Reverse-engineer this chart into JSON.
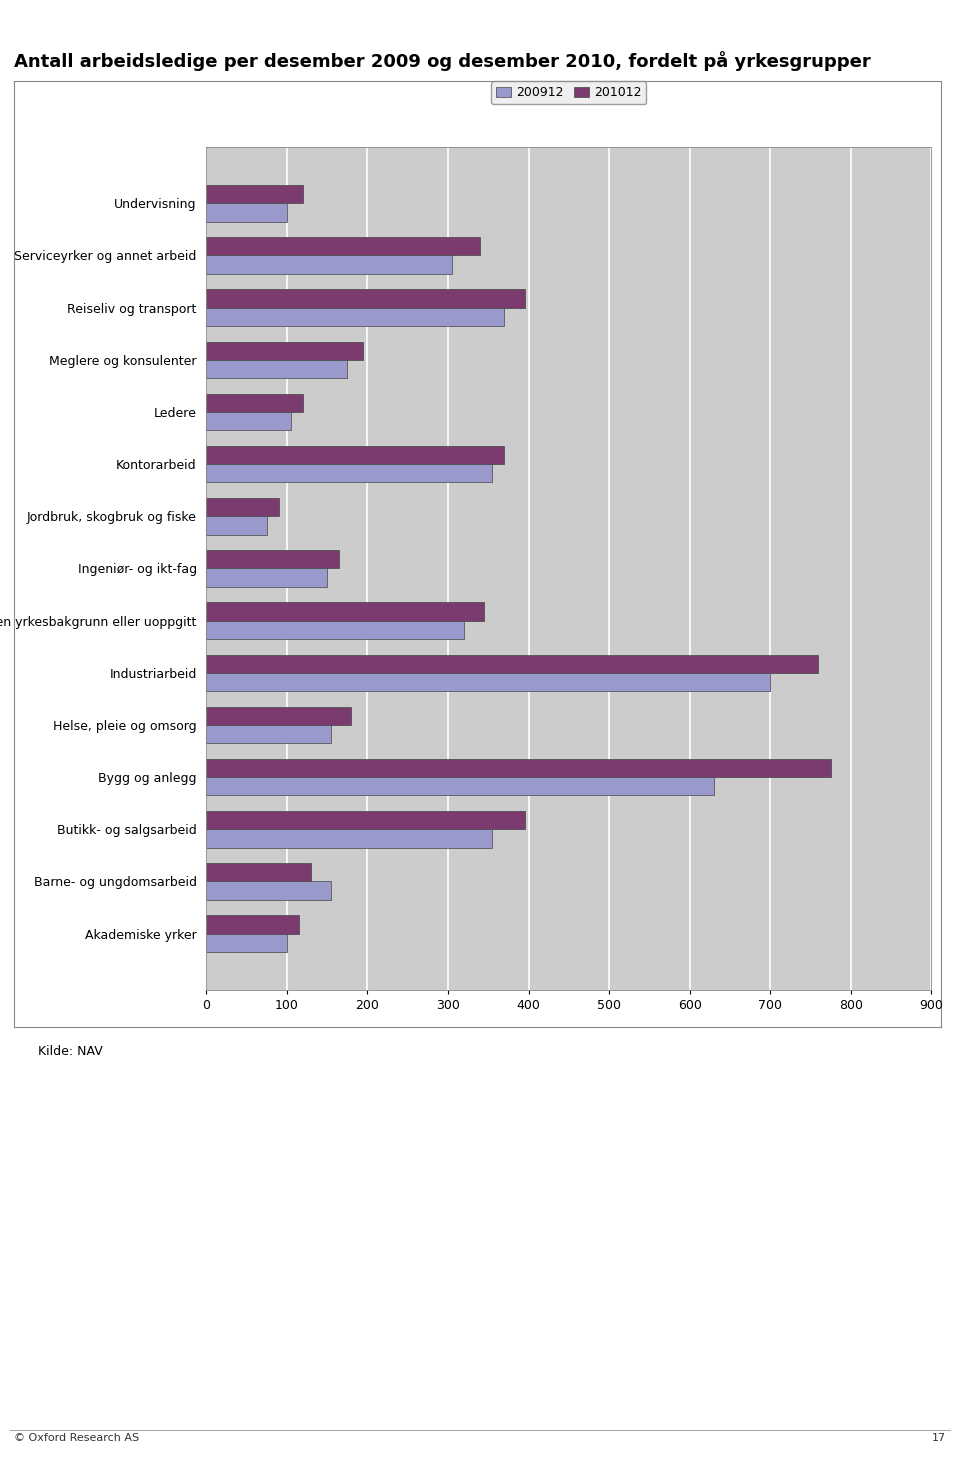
{
  "title": "Antall arbeidsledige per desember 2009 og desember 2010, fordelt på yrkesgrupper",
  "categories": [
    "Akademiske yrker",
    "Barne- og ungdomsarbeid",
    "Butikk- og salgsarbeid",
    "Bygg og anlegg",
    "Helse, pleie og omsorg",
    "Industriarbeid",
    "Ingen yrkesbakgrunn eller uoppgitt",
    "Ingeniør- og ikt-fag",
    "Jordbruk, skogbruk og fiske",
    "Kontorarbeid",
    "Ledere",
    "Meglere og konsulenter",
    "Reiseliv og transport",
    "Serviceyrker og annet arbeid",
    "Undervisning"
  ],
  "values_200912": [
    100,
    155,
    355,
    630,
    155,
    700,
    320,
    150,
    75,
    355,
    105,
    175,
    370,
    305,
    100
  ],
  "values_201012": [
    115,
    130,
    395,
    775,
    180,
    760,
    345,
    165,
    90,
    370,
    120,
    195,
    395,
    340,
    120
  ],
  "color_200912": "#9999cc",
  "color_201012": "#7b3b6e",
  "legend_200912": "200912",
  "legend_201012": "201012",
  "xlim": [
    0,
    900
  ],
  "xticks": [
    0,
    100,
    200,
    300,
    400,
    500,
    600,
    700,
    800,
    900
  ],
  "plot_bg_color": "#cccccc",
  "grid_color": "#ffffff",
  "title_fontsize": 13,
  "tick_fontsize": 9,
  "footer": "© Oxford Research AS",
  "page_number": "17",
  "source": "Kilde: NAV"
}
